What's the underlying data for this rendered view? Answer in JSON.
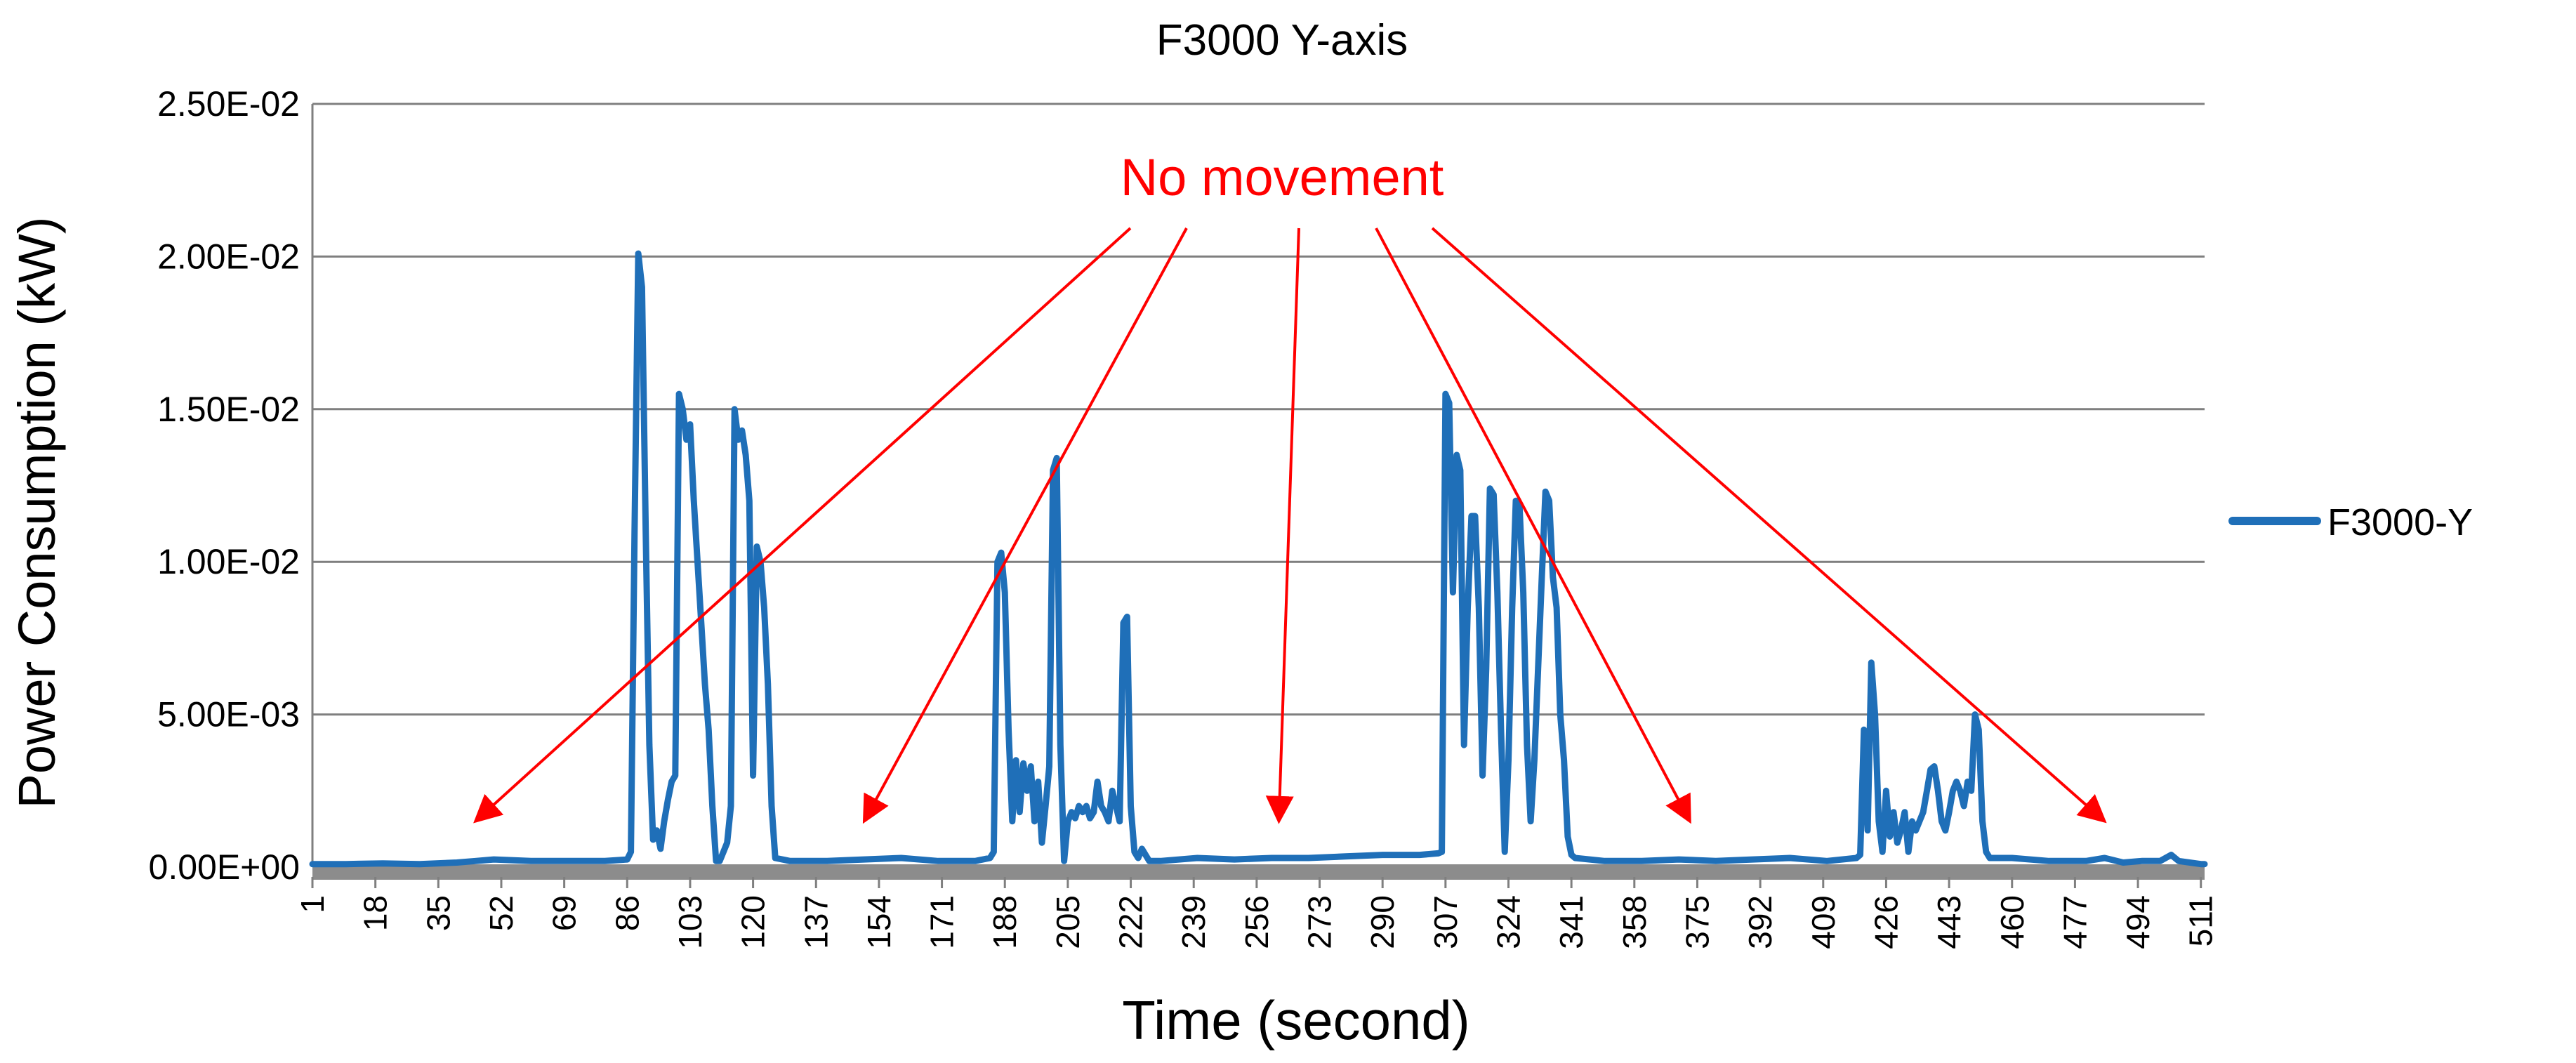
{
  "chart_data": {
    "type": "line",
    "title": "F3000 Y-axis",
    "xlabel": "Time (second)",
    "ylabel": "Power Consumption (kW)",
    "ylim": [
      0,
      0.025
    ],
    "ytick_labels": [
      "0.00E+00",
      "5.00E-03",
      "1.00E-02",
      "1.50E-02",
      "2.00E-02",
      "2.50E-02"
    ],
    "ytick_values": [
      0,
      0.005,
      0.01,
      0.015,
      0.02,
      0.025
    ],
    "xlim": [
      1,
      512
    ],
    "xtick_labels": [
      "1",
      "18",
      "35",
      "52",
      "69",
      "86",
      "103",
      "120",
      "137",
      "154",
      "171",
      "188",
      "205",
      "222",
      "239",
      "256",
      "273",
      "290",
      "307",
      "324",
      "341",
      "358",
      "375",
      "392",
      "409",
      "426",
      "443",
      "460",
      "477",
      "494",
      "511"
    ],
    "grid": true,
    "legend_position": "right",
    "series": [
      {
        "name": "F3000-Y",
        "color": "#1f6fb8",
        "points": [
          [
            1,
            0.0001
          ],
          [
            10,
            0.0001
          ],
          [
            20,
            0.00012
          ],
          [
            30,
            0.0001
          ],
          [
            40,
            0.00015
          ],
          [
            45,
            0.0002
          ],
          [
            50,
            0.00025
          ],
          [
            60,
            0.0002
          ],
          [
            70,
            0.0002
          ],
          [
            80,
            0.0002
          ],
          [
            86,
            0.00025
          ],
          [
            87,
            0.0005
          ],
          [
            88,
            0.011
          ],
          [
            89,
            0.0201
          ],
          [
            90,
            0.019
          ],
          [
            91,
            0.011
          ],
          [
            92,
            0.004
          ],
          [
            93,
            0.0009
          ],
          [
            94,
            0.0012
          ],
          [
            95,
            0.0006
          ],
          [
            96,
            0.0015
          ],
          [
            97,
            0.0022
          ],
          [
            98,
            0.0028
          ],
          [
            99,
            0.003
          ],
          [
            100,
            0.0155
          ],
          [
            101,
            0.015
          ],
          [
            102,
            0.014
          ],
          [
            103,
            0.0145
          ],
          [
            104,
            0.012
          ],
          [
            105,
            0.01
          ],
          [
            106,
            0.008
          ],
          [
            107,
            0.006
          ],
          [
            108,
            0.0045
          ],
          [
            109,
            0.002
          ],
          [
            110,
            0.0002
          ],
          [
            111,
            0.0002
          ],
          [
            112,
            0.0005
          ],
          [
            113,
            0.0008
          ],
          [
            114,
            0.002
          ],
          [
            115,
            0.015
          ],
          [
            116,
            0.014
          ],
          [
            117,
            0.0143
          ],
          [
            118,
            0.0135
          ],
          [
            119,
            0.012
          ],
          [
            120,
            0.003
          ],
          [
            121,
            0.0105
          ],
          [
            122,
            0.01
          ],
          [
            123,
            0.0085
          ],
          [
            124,
            0.006
          ],
          [
            125,
            0.002
          ],
          [
            126,
            0.0003
          ],
          [
            130,
            0.0002
          ],
          [
            140,
            0.0002
          ],
          [
            150,
            0.00025
          ],
          [
            160,
            0.0003
          ],
          [
            170,
            0.0002
          ],
          [
            180,
            0.0002
          ],
          [
            184,
            0.0003
          ],
          [
            185,
            0.0005
          ],
          [
            186,
            0.01
          ],
          [
            187,
            0.0103
          ],
          [
            188,
            0.009
          ],
          [
            189,
            0.0045
          ],
          [
            190,
            0.0015
          ],
          [
            191,
            0.0035
          ],
          [
            192,
            0.0018
          ],
          [
            193,
            0.0034
          ],
          [
            194,
            0.0025
          ],
          [
            195,
            0.0033
          ],
          [
            196,
            0.0015
          ],
          [
            197,
            0.0028
          ],
          [
            198,
            0.0008
          ],
          [
            199,
            0.002
          ],
          [
            200,
            0.0033
          ],
          [
            201,
            0.013
          ],
          [
            202,
            0.0134
          ],
          [
            203,
            0.004
          ],
          [
            204,
            0.0002
          ],
          [
            205,
            0.0015
          ],
          [
            206,
            0.0018
          ],
          [
            207,
            0.0016
          ],
          [
            208,
            0.002
          ],
          [
            209,
            0.0018
          ],
          [
            210,
            0.002
          ],
          [
            211,
            0.0016
          ],
          [
            212,
            0.0018
          ],
          [
            213,
            0.0028
          ],
          [
            214,
            0.002
          ],
          [
            215,
            0.0018
          ],
          [
            216,
            0.0015
          ],
          [
            217,
            0.0025
          ],
          [
            218,
            0.002
          ],
          [
            219,
            0.0015
          ],
          [
            220,
            0.008
          ],
          [
            221,
            0.0082
          ],
          [
            222,
            0.002
          ],
          [
            223,
            0.0005
          ],
          [
            224,
            0.0003
          ],
          [
            225,
            0.0006
          ],
          [
            226,
            0.0004
          ],
          [
            227,
            0.0002
          ],
          [
            230,
            0.0002
          ],
          [
            240,
            0.0003
          ],
          [
            250,
            0.00025
          ],
          [
            260,
            0.0003
          ],
          [
            270,
            0.0003
          ],
          [
            280,
            0.00035
          ],
          [
            290,
            0.0004
          ],
          [
            300,
            0.0004
          ],
          [
            305,
            0.00045
          ],
          [
            306,
            0.0005
          ],
          [
            307,
            0.0155
          ],
          [
            308,
            0.0152
          ],
          [
            309,
            0.009
          ],
          [
            310,
            0.0135
          ],
          [
            311,
            0.013
          ],
          [
            312,
            0.004
          ],
          [
            313,
            0.0085
          ],
          [
            314,
            0.0115
          ],
          [
            315,
            0.0115
          ],
          [
            316,
            0.0085
          ],
          [
            317,
            0.003
          ],
          [
            318,
            0.0065
          ],
          [
            319,
            0.0124
          ],
          [
            320,
            0.0122
          ],
          [
            321,
            0.009
          ],
          [
            322,
            0.0045
          ],
          [
            323,
            0.0005
          ],
          [
            324,
            0.0035
          ],
          [
            325,
            0.0085
          ],
          [
            326,
            0.012
          ],
          [
            327,
            0.0118
          ],
          [
            328,
            0.009
          ],
          [
            329,
            0.004
          ],
          [
            330,
            0.0015
          ],
          [
            331,
            0.0035
          ],
          [
            332,
            0.0065
          ],
          [
            333,
            0.0095
          ],
          [
            334,
            0.0123
          ],
          [
            335,
            0.012
          ],
          [
            336,
            0.0095
          ],
          [
            337,
            0.0085
          ],
          [
            338,
            0.005
          ],
          [
            339,
            0.0035
          ],
          [
            340,
            0.001
          ],
          [
            341,
            0.0004
          ],
          [
            342,
            0.0003
          ],
          [
            350,
            0.0002
          ],
          [
            360,
            0.0002
          ],
          [
            370,
            0.00025
          ],
          [
            380,
            0.0002
          ],
          [
            390,
            0.00025
          ],
          [
            400,
            0.0003
          ],
          [
            410,
            0.0002
          ],
          [
            418,
            0.0003
          ],
          [
            419,
            0.0004
          ],
          [
            420,
            0.0045
          ],
          [
            421,
            0.0012
          ],
          [
            422,
            0.0067
          ],
          [
            423,
            0.005
          ],
          [
            424,
            0.0015
          ],
          [
            425,
            0.0005
          ],
          [
            426,
            0.0025
          ],
          [
            427,
            0.001
          ],
          [
            428,
            0.0018
          ],
          [
            429,
            0.0008
          ],
          [
            430,
            0.0012
          ],
          [
            431,
            0.0018
          ],
          [
            432,
            0.0005
          ],
          [
            433,
            0.0015
          ],
          [
            434,
            0.0012
          ],
          [
            435,
            0.0015
          ],
          [
            436,
            0.0018
          ],
          [
            437,
            0.0025
          ],
          [
            438,
            0.0032
          ],
          [
            439,
            0.0033
          ],
          [
            440,
            0.0025
          ],
          [
            441,
            0.0015
          ],
          [
            442,
            0.0012
          ],
          [
            443,
            0.0018
          ],
          [
            444,
            0.0025
          ],
          [
            445,
            0.0028
          ],
          [
            446,
            0.0025
          ],
          [
            447,
            0.002
          ],
          [
            448,
            0.0028
          ],
          [
            449,
            0.0025
          ],
          [
            450,
            0.005
          ],
          [
            451,
            0.0045
          ],
          [
            452,
            0.0015
          ],
          [
            453,
            0.0005
          ],
          [
            454,
            0.0003
          ],
          [
            460,
            0.0003
          ],
          [
            470,
            0.0002
          ],
          [
            480,
            0.0002
          ],
          [
            485,
            0.0003
          ],
          [
            490,
            0.00015
          ],
          [
            495,
            0.0002
          ],
          [
            500,
            0.0002
          ],
          [
            503,
            0.0004
          ],
          [
            505,
            0.0002
          ],
          [
            511,
            0.0001
          ],
          [
            512,
            0.0001
          ]
        ]
      }
    ],
    "annotation": {
      "text": "No movement",
      "color": "#ff0000",
      "arrows": [
        {
          "target": [
            45,
            0.0015
          ]
        },
        {
          "target": [
            150,
            0.0015
          ]
        },
        {
          "target": [
            262,
            0.0015
          ]
        },
        {
          "target": [
            373,
            0.0015
          ]
        },
        {
          "target": [
            485,
            0.0015
          ]
        }
      ]
    }
  }
}
